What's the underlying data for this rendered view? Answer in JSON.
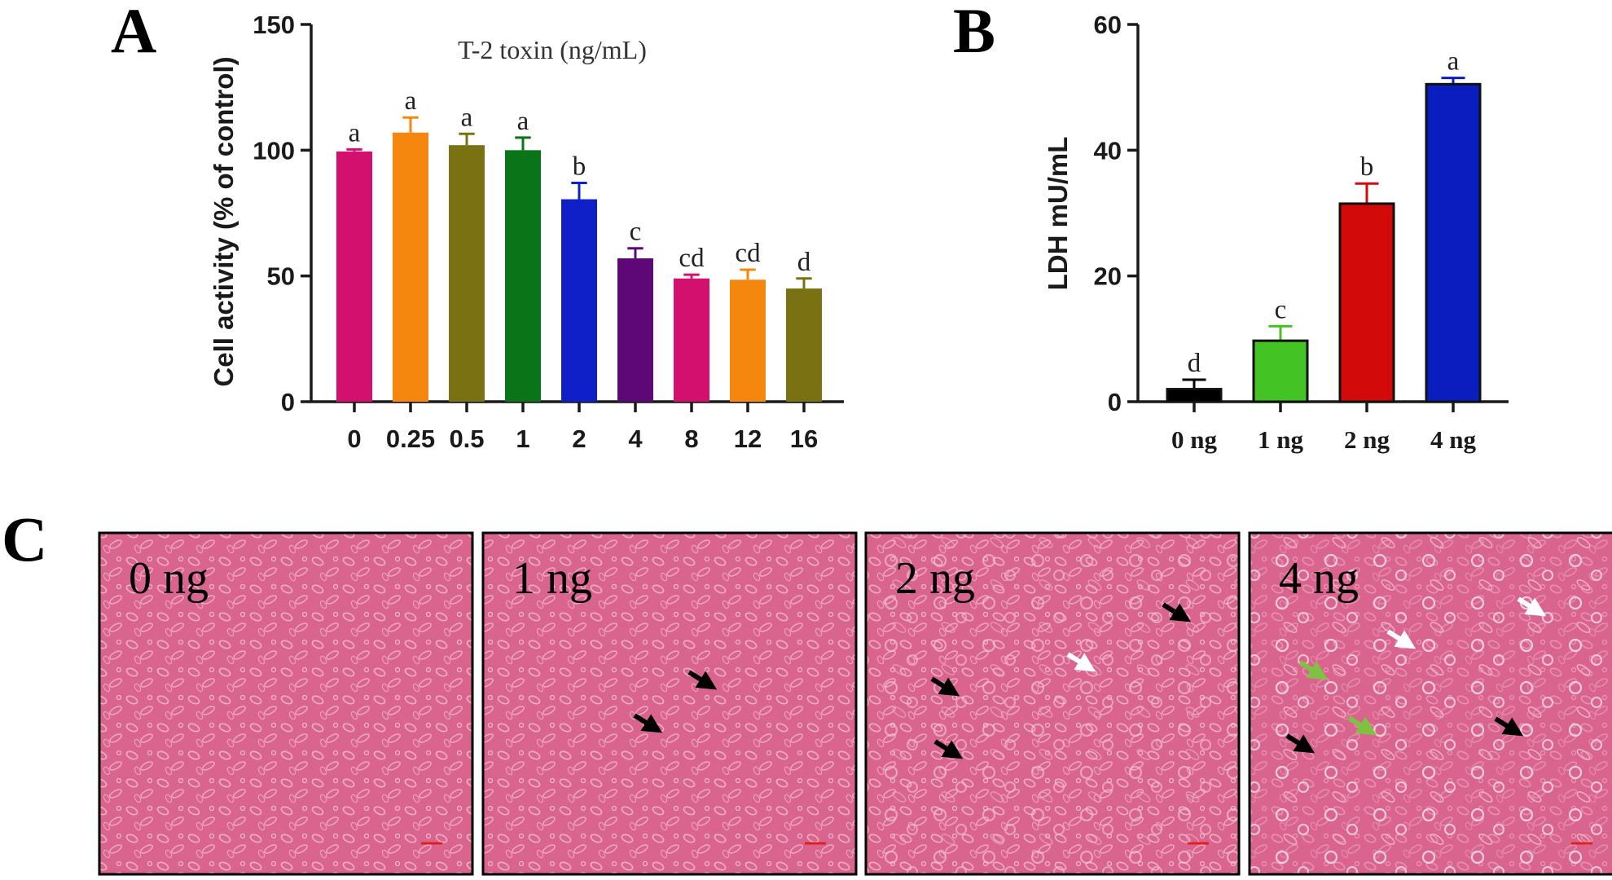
{
  "panel_labels": [
    "A",
    "B",
    "C"
  ],
  "chart_data": [
    {
      "type": "bar",
      "panel": "A",
      "subtitle": "T-2 toxin (ng/mL)",
      "xlabel": "",
      "ylabel": "Cell activity (% of control)",
      "ylim": [
        0,
        150
      ],
      "yticks": [
        "0",
        "50",
        "100",
        "150"
      ],
      "categories": [
        "0",
        "0.25",
        "0.5",
        "1",
        "2",
        "4",
        "8",
        "12",
        "16"
      ],
      "values": [
        99.5,
        107,
        102,
        100,
        80.5,
        57,
        49,
        48.5,
        45
      ],
      "errors": [
        0.8,
        6,
        4.5,
        5,
        6.5,
        4,
        1.5,
        4,
        4
      ],
      "significance": [
        "a",
        "a",
        "a",
        "a",
        "b",
        "c",
        "cd",
        "cd",
        "d"
      ],
      "colors": [
        "#d4106e",
        "#f5860e",
        "#7a7212",
        "#0a7418",
        "#1020c8",
        "#5e0878",
        "#d4106e",
        "#f5860e",
        "#7a7212"
      ],
      "grid": false
    },
    {
      "type": "bar",
      "panel": "B",
      "xlabel": "",
      "ylabel": "LDH mU/mL",
      "ylim": [
        0,
        60
      ],
      "yticks": [
        "0",
        "20",
        "40",
        "60"
      ],
      "categories": [
        "0 ng",
        "1 ng",
        "2 ng",
        "4 ng"
      ],
      "values": [
        2,
        9.7,
        31.5,
        50.5
      ],
      "errors": [
        1.5,
        2.3,
        3.2,
        1
      ],
      "significance": [
        "d",
        "c",
        "b",
        "a"
      ],
      "colors": [
        "#000000",
        "#44c424",
        "#d20a0a",
        "#0a1ec0"
      ],
      "grid": false
    }
  ],
  "micrographs": {
    "panels": [
      {
        "label": "0 ng",
        "black_arrows": 0,
        "white_arrows": 0,
        "green_arrows": 0
      },
      {
        "label": "1 ng",
        "black_arrows": 2,
        "white_arrows": 0,
        "green_arrows": 0
      },
      {
        "label": "2 ng",
        "black_arrows": 3,
        "white_arrows": 1,
        "green_arrows": 0
      },
      {
        "label": "4 ng",
        "black_arrows": 2,
        "white_arrows": 2,
        "green_arrows": 2
      }
    ],
    "background_color": "#d9658f",
    "scale_bar_color": "#e02020"
  }
}
